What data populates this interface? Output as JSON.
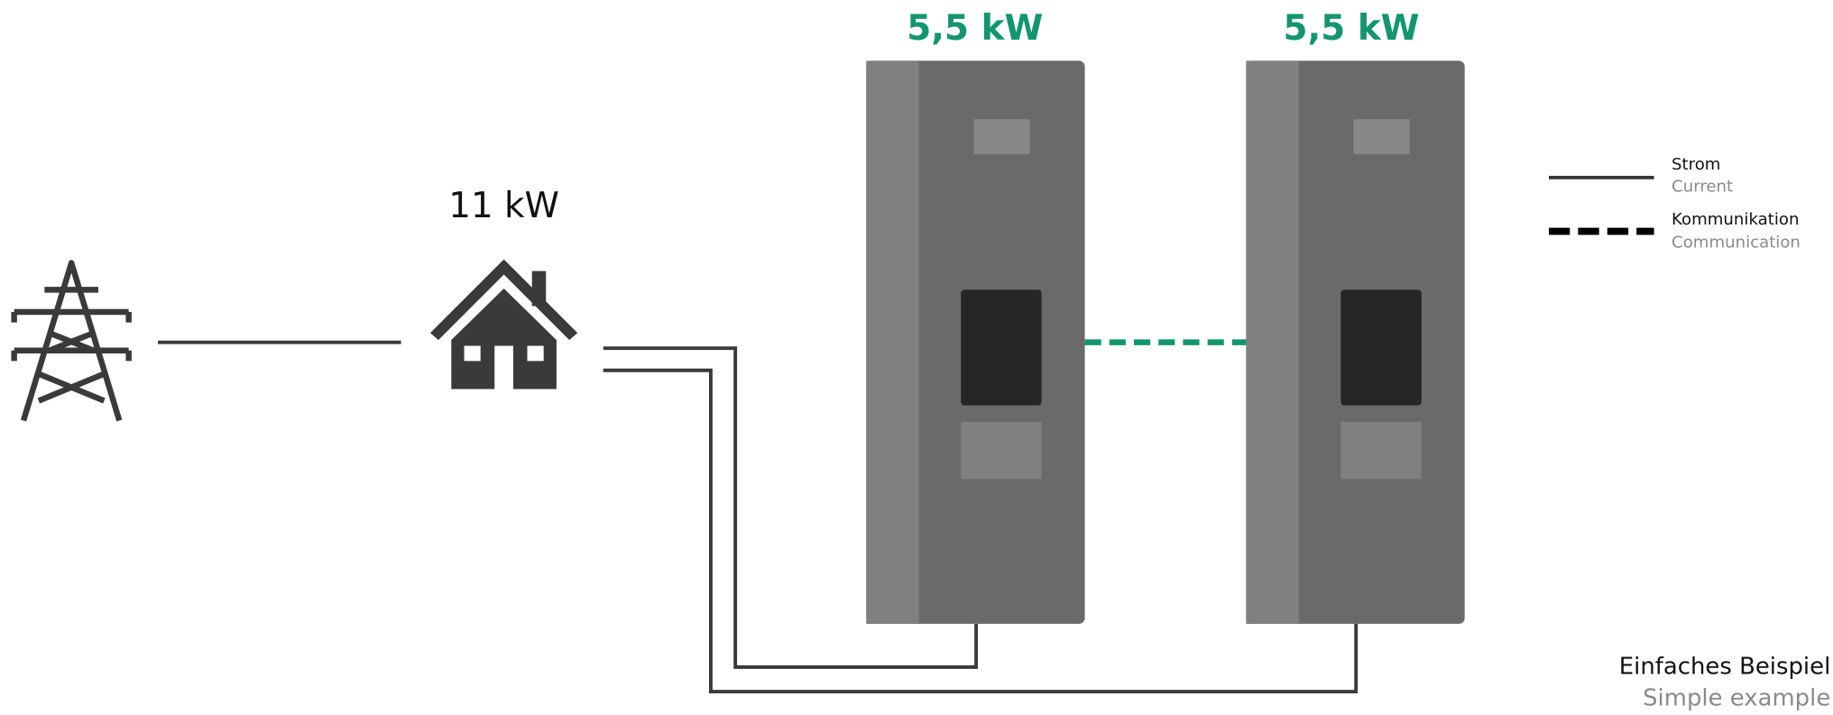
{
  "chargers": [
    {
      "power": "5,5 kW"
    },
    {
      "power": "5,5 kW"
    }
  ],
  "house": {
    "power": "11 kW"
  },
  "legend": [
    {
      "label": "Strom",
      "sublabel": "Current"
    },
    {
      "label": "Kommunikation",
      "sublabel": "Communication"
    }
  ],
  "footer": {
    "title": "Einfaches Beispiel",
    "subtitle": "Simple example"
  }
}
